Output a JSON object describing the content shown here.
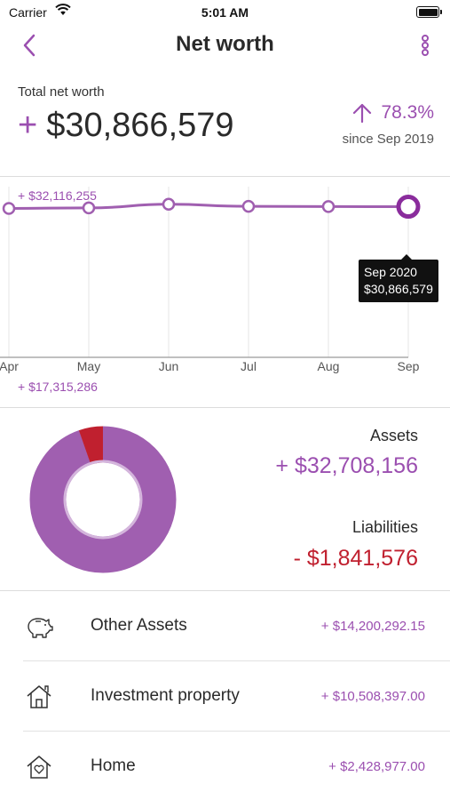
{
  "status_bar": {
    "carrier": "Carrier",
    "time": "5:01 AM"
  },
  "nav": {
    "title": "Net worth",
    "back_icon": "chevron-left-icon",
    "more_icon": "vertical-ellipsis-icon"
  },
  "summary": {
    "label": "Total net worth",
    "sign": "+",
    "value": "$30,866,579",
    "change_pct": "78.3%",
    "change_direction": "up",
    "since": "since Sep 2019"
  },
  "chart_data": {
    "type": "line",
    "categories": [
      "Apr",
      "May",
      "Jun",
      "Jul",
      "Aug",
      "Sep"
    ],
    "max_label": "+ $32,116,255",
    "min_label": "+ $17,315,286",
    "y_range": [
      17315286,
      32116255
    ],
    "values": [
      30700000,
      30750000,
      31100000,
      30900000,
      30880000,
      30866579
    ],
    "series_color": "#9b4fb0",
    "selected_index": 5,
    "tooltip": {
      "date": "Sep 2020",
      "value": "$30,866,579"
    }
  },
  "breakdown": {
    "assets_label": "Assets",
    "assets_value": "+ $32,708,156",
    "liabilities_label": "Liabilities",
    "liabilities_value": "- $1,841,576",
    "assets_amount": 32708156,
    "liabilities_amount": 1841576,
    "assets_color": "#a05fb0",
    "liabilities_color": "#c0202f"
  },
  "items": [
    {
      "icon": "piggy-bank-icon",
      "label": "Other Assets",
      "amount": "+ $14,200,292.15"
    },
    {
      "icon": "house-icon",
      "label": "Investment property",
      "amount": "+ $10,508,397.00"
    },
    {
      "icon": "home-heart-icon",
      "label": "Home",
      "amount": "+ $2,428,977.00"
    }
  ]
}
